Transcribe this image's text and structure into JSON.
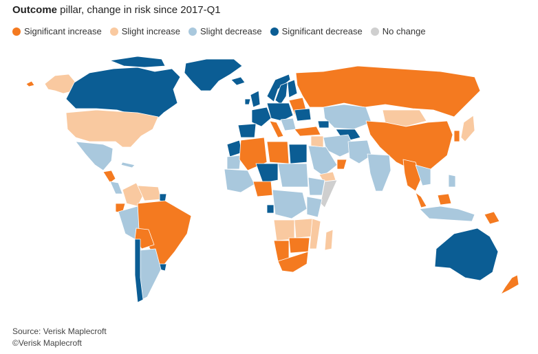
{
  "title": {
    "bold": "Outcome",
    "rest": " pillar, change in risk since 2017-Q1"
  },
  "legend": [
    {
      "label": "Significant increase",
      "color": "#f47a20"
    },
    {
      "label": "Slight increase",
      "color": "#f9c9a0"
    },
    {
      "label": "Slight decrease",
      "color": "#a9c8dd"
    },
    {
      "label": "Significant decrease",
      "color": "#0b5d94"
    },
    {
      "label": "No change",
      "color": "#cfcfcf"
    }
  ],
  "footer": {
    "source": "Source: Verisk Maplecroft",
    "copyright": "©Verisk Maplecroft"
  }
}
